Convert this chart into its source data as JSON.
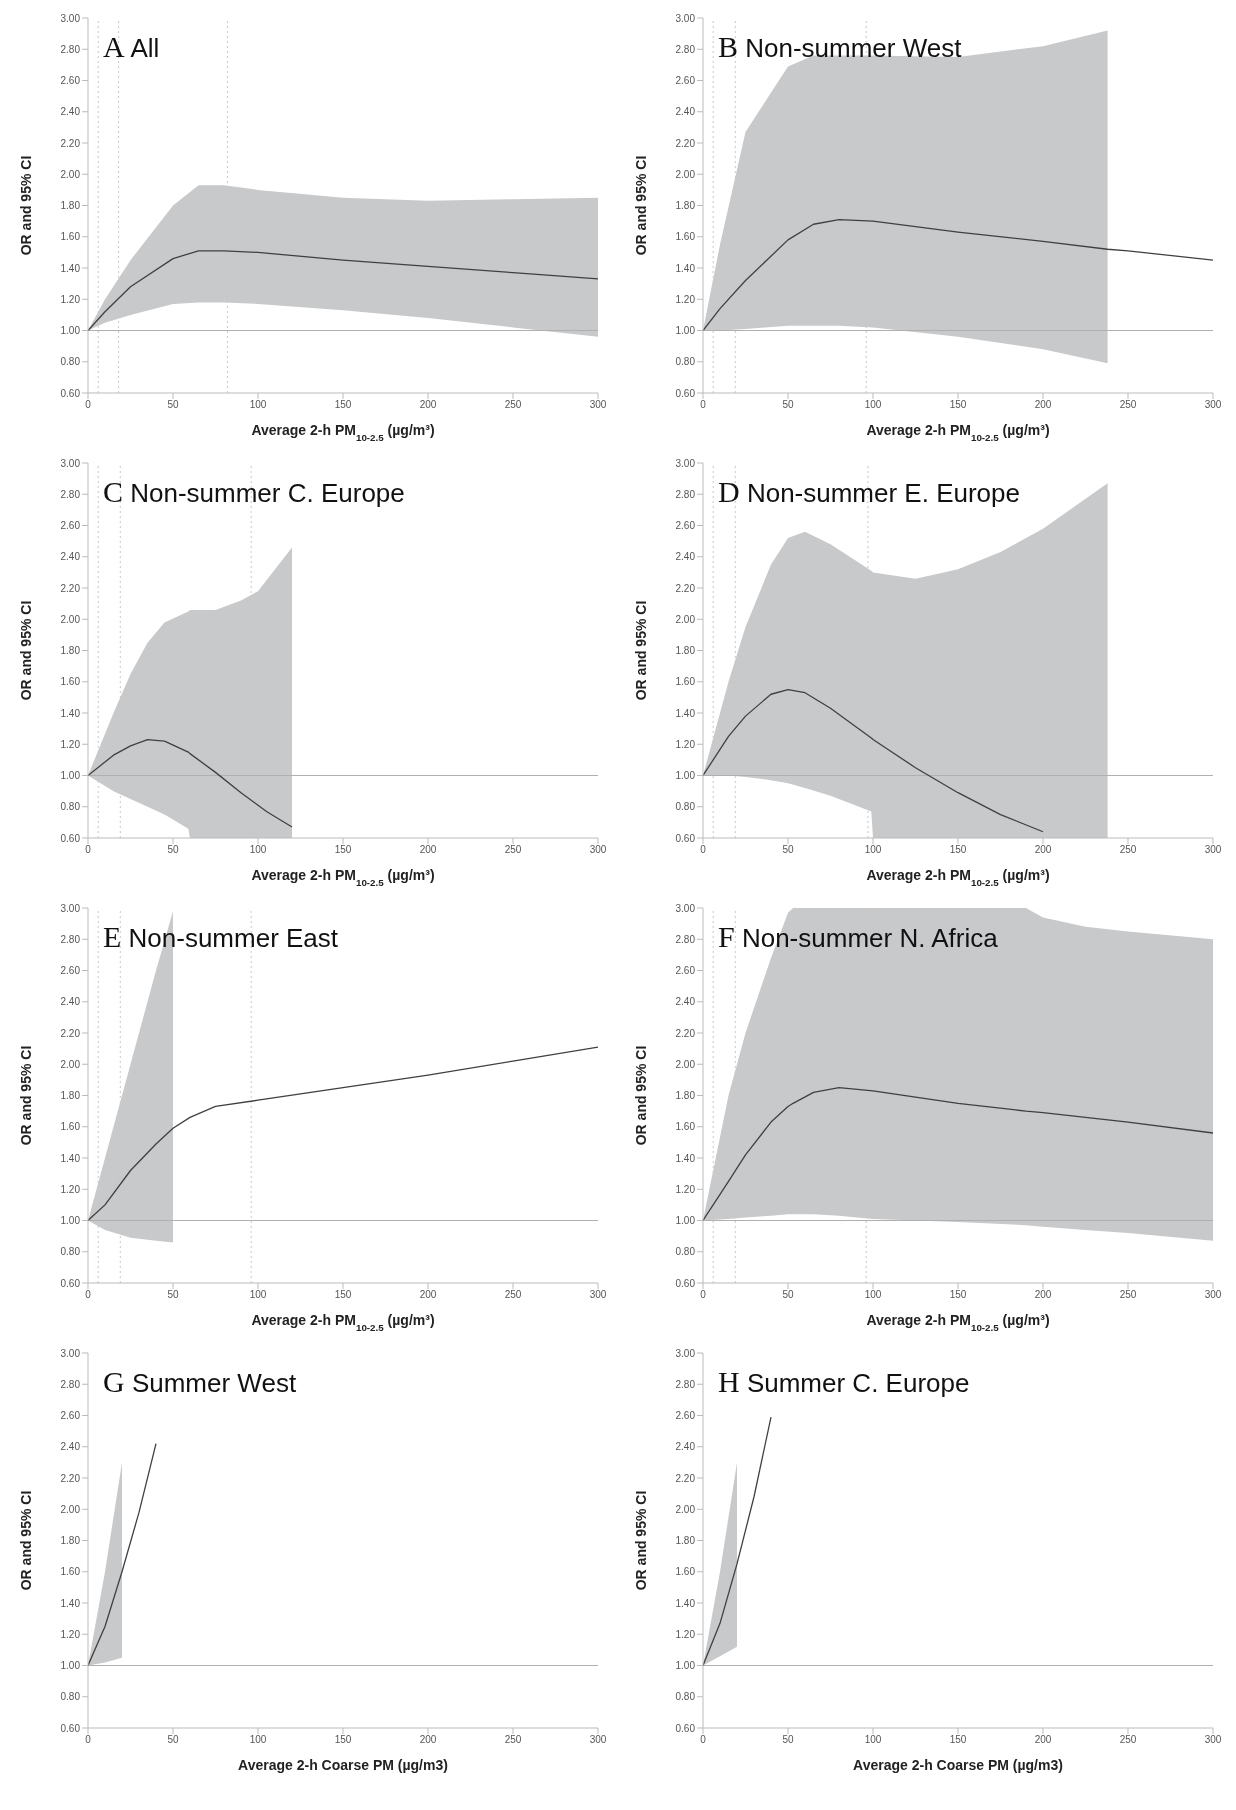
{
  "chart_data": [
    {
      "type": "line",
      "title": "A All",
      "xlabel": "Average 2-h PM$_{10-2.5}$ (µg/m³)",
      "ylabel": "OR and 95% CI",
      "xlim": [
        0,
        300
      ],
      "xticks": [
        0,
        50,
        100,
        150,
        200,
        250,
        300
      ],
      "ylim": [
        0.6,
        3.0
      ],
      "yticks": [
        {
          "value": 0.6,
          "label": "0.60"
        },
        {
          "value": 0.8,
          "label": "0.80"
        },
        {
          "value": 1.0,
          "label": "1.00"
        },
        {
          "value": 1.2,
          "label": "1.20"
        },
        {
          "value": 1.4,
          "label": "1.40"
        },
        {
          "value": 1.6,
          "label": "1.60"
        },
        {
          "value": 1.8,
          "label": "1.80"
        },
        {
          "value": 2.0,
          "label": "2.00"
        },
        {
          "value": 2.2,
          "label": "2.20"
        },
        {
          "value": 2.4,
          "label": "2.40"
        },
        {
          "value": 2.6,
          "label": "2.60"
        },
        {
          "value": 2.8,
          "label": "2.80"
        },
        {
          "value": 3.0,
          "label": "3.00"
        }
      ],
      "series": [
        {
          "color": "#404040",
          "x": [
            0,
            10,
            25,
            50,
            65,
            80,
            100,
            150,
            200,
            250,
            300
          ],
          "values": [
            1.0,
            1.12,
            1.28,
            1.46,
            1.51,
            1.51,
            1.5,
            1.45,
            1.41,
            1.37,
            1.33
          ],
          "lower": [
            1.0,
            1.05,
            1.1,
            1.17,
            1.18,
            1.18,
            1.17,
            1.13,
            1.08,
            1.02,
            0.96
          ],
          "upper": [
            1.0,
            1.2,
            1.45,
            1.8,
            1.93,
            1.93,
            1.9,
            1.85,
            1.83,
            1.84,
            1.85
          ]
        }
      ],
      "ref_lines": [
        {
          "axis": "y",
          "value": 1.0,
          "color": "#b0b0b0",
          "line_style": "solid"
        },
        {
          "axis": "x",
          "value": 6,
          "color": "#c8c8c8",
          "line_style": "dotted"
        },
        {
          "axis": "x",
          "value": 18,
          "color": "#c8c8c8",
          "line_style": "dotted"
        },
        {
          "axis": "x",
          "value": 82,
          "color": "#c8c8c8",
          "line_style": "dotted"
        }
      ]
    },
    {
      "type": "line",
      "title": "B Non-summer West",
      "xlabel": "Average 2-h PM$_{10-2.5}$ (µg/m³)",
      "ylabel": "OR and 95% CI",
      "xlim": [
        0,
        300
      ],
      "xticks": [
        0,
        50,
        100,
        150,
        200,
        250,
        300
      ],
      "ylim": [
        0.6,
        3.0
      ],
      "yticks": [
        {
          "value": 0.6,
          "label": "0.60"
        },
        {
          "value": 0.8,
          "label": "0.80"
        },
        {
          "value": 1.0,
          "label": "1.00"
        },
        {
          "value": 1.2,
          "label": "1.20"
        },
        {
          "value": 1.4,
          "label": "1.40"
        },
        {
          "value": 1.6,
          "label": "1.60"
        },
        {
          "value": 1.8,
          "label": "1.80"
        },
        {
          "value": 2.0,
          "label": "2.00"
        },
        {
          "value": 2.2,
          "label": "2.20"
        },
        {
          "value": 2.4,
          "label": "2.40"
        },
        {
          "value": 2.6,
          "label": "2.60"
        },
        {
          "value": 2.8,
          "label": "2.80"
        },
        {
          "value": 3.0,
          "label": "3.00"
        }
      ],
      "series": [
        {
          "color": "#404040",
          "x": [
            0,
            10,
            25,
            50,
            65,
            80,
            100,
            150,
            200,
            238,
            250,
            300
          ],
          "values": [
            1.0,
            1.14,
            1.32,
            1.58,
            1.68,
            1.71,
            1.7,
            1.63,
            1.57,
            1.52,
            1.51,
            1.45
          ],
          "lower": [
            1.0,
            1.0,
            1.01,
            1.03,
            1.03,
            1.03,
            1.02,
            0.96,
            0.88,
            0.79,
            null,
            null
          ],
          "upper": [
            1.0,
            1.55,
            2.27,
            2.69,
            2.76,
            2.76,
            2.76,
            2.75,
            2.82,
            2.92,
            null,
            null
          ]
        }
      ],
      "ref_lines": [
        {
          "axis": "y",
          "value": 1.0,
          "color": "#b0b0b0",
          "line_style": "solid"
        },
        {
          "axis": "x",
          "value": 6,
          "color": "#c8c8c8",
          "line_style": "dotted"
        },
        {
          "axis": "x",
          "value": 19,
          "color": "#c8c8c8",
          "line_style": "dotted"
        },
        {
          "axis": "x",
          "value": 96,
          "color": "#c8c8c8",
          "line_style": "dotted"
        }
      ]
    },
    {
      "type": "line",
      "title": "C Non-summer C. Europe",
      "xlabel": "Average 2-h PM$_{10-2.5}$ (µg/m³)",
      "ylabel": "OR and 95% CI",
      "xlim": [
        0,
        300
      ],
      "xticks": [
        0,
        50,
        100,
        150,
        200,
        250,
        300
      ],
      "ylim": [
        0.6,
        3.0
      ],
      "yticks": [
        {
          "value": 0.6,
          "label": "0.60"
        },
        {
          "value": 0.8,
          "label": "0.80"
        },
        {
          "value": 1.0,
          "label": "1.00"
        },
        {
          "value": 1.2,
          "label": "1.20"
        },
        {
          "value": 1.4,
          "label": "1.40"
        },
        {
          "value": 1.6,
          "label": "1.60"
        },
        {
          "value": 1.8,
          "label": "1.80"
        },
        {
          "value": 2.0,
          "label": "2.00"
        },
        {
          "value": 2.2,
          "label": "2.20"
        },
        {
          "value": 2.4,
          "label": "2.40"
        },
        {
          "value": 2.6,
          "label": "2.60"
        },
        {
          "value": 2.8,
          "label": "2.80"
        },
        {
          "value": 3.0,
          "label": "3.00"
        }
      ],
      "series": [
        {
          "color": "#404040",
          "x": [
            0,
            15,
            25,
            35,
            45,
            59,
            60,
            75,
            90,
            100,
            105,
            120
          ],
          "values": [
            1.0,
            1.13,
            1.19,
            1.23,
            1.22,
            1.15,
            1.14,
            1.02,
            0.89,
            0.81,
            0.77,
            0.67
          ],
          "lower": [
            1.0,
            0.9,
            0.85,
            0.8,
            0.75,
            0.66,
            0.6,
            0.6,
            0.6,
            0.6,
            0.6,
            0.6
          ],
          "upper": [
            1.0,
            1.4,
            1.65,
            1.85,
            1.98,
            2.05,
            2.06,
            2.06,
            2.12,
            2.18,
            2.25,
            2.46
          ]
        }
      ],
      "ref_lines": [
        {
          "axis": "y",
          "value": 1.0,
          "color": "#b0b0b0",
          "line_style": "solid"
        },
        {
          "axis": "x",
          "value": 6,
          "color": "#c8c8c8",
          "line_style": "dotted"
        },
        {
          "axis": "x",
          "value": 19,
          "color": "#c8c8c8",
          "line_style": "dotted"
        },
        {
          "axis": "x",
          "value": 96,
          "color": "#c8c8c8",
          "line_style": "dotted"
        }
      ]
    },
    {
      "type": "line",
      "title": "D Non-summer E. Europe",
      "xlabel": "Average 2-h PM$_{10-2.5}$ (µg/m³)",
      "ylabel": "OR and 95% CI",
      "xlim": [
        0,
        300
      ],
      "xticks": [
        0,
        50,
        100,
        150,
        200,
        250,
        300
      ],
      "ylim": [
        0.6,
        3.0
      ],
      "yticks": [
        {
          "value": 0.6,
          "label": "0.60"
        },
        {
          "value": 0.8,
          "label": "0.80"
        },
        {
          "value": 1.0,
          "label": "1.00"
        },
        {
          "value": 1.2,
          "label": "1.20"
        },
        {
          "value": 1.4,
          "label": "1.40"
        },
        {
          "value": 1.6,
          "label": "1.60"
        },
        {
          "value": 1.8,
          "label": "1.80"
        },
        {
          "value": 2.0,
          "label": "2.00"
        },
        {
          "value": 2.2,
          "label": "2.20"
        },
        {
          "value": 2.4,
          "label": "2.40"
        },
        {
          "value": 2.6,
          "label": "2.60"
        },
        {
          "value": 2.8,
          "label": "2.80"
        },
        {
          "value": 3.0,
          "label": "3.00"
        }
      ],
      "series": [
        {
          "color": "#404040",
          "x": [
            0,
            15,
            25,
            40,
            50,
            60,
            75,
            99,
            100,
            125,
            150,
            175,
            200,
            238
          ],
          "values": [
            1.0,
            1.25,
            1.38,
            1.52,
            1.55,
            1.53,
            1.43,
            1.24,
            1.23,
            1.05,
            0.89,
            0.75,
            0.64,
            null
          ],
          "lower": [
            1.0,
            1.0,
            0.99,
            0.97,
            0.95,
            0.92,
            0.87,
            0.77,
            0.6,
            0.6,
            0.6,
            0.6,
            0.6,
            0.6
          ],
          "upper": [
            1.0,
            1.6,
            1.95,
            2.35,
            2.52,
            2.56,
            2.48,
            2.31,
            2.3,
            2.26,
            2.32,
            2.43,
            2.58,
            2.87
          ]
        }
      ],
      "ref_lines": [
        {
          "axis": "y",
          "value": 1.0,
          "color": "#b0b0b0",
          "line_style": "solid"
        },
        {
          "axis": "x",
          "value": 6,
          "color": "#c8c8c8",
          "line_style": "dotted"
        },
        {
          "axis": "x",
          "value": 19,
          "color": "#c8c8c8",
          "line_style": "dotted"
        },
        {
          "axis": "x",
          "value": 97,
          "color": "#c8c8c8",
          "line_style": "dotted"
        }
      ]
    },
    {
      "type": "line",
      "title": "E Non-summer East",
      "xlabel": "Average 2-h PM$_{10-2.5}$ (µg/m³)",
      "ylabel": "OR and 95% CI",
      "xlim": [
        0,
        300
      ],
      "xticks": [
        0,
        50,
        100,
        150,
        200,
        250,
        300
      ],
      "ylim": [
        0.6,
        3.0
      ],
      "yticks": [
        {
          "value": 0.6,
          "label": "0.60"
        },
        {
          "value": 0.8,
          "label": "0.80"
        },
        {
          "value": 1.0,
          "label": "1.00"
        },
        {
          "value": 1.2,
          "label": "1.20"
        },
        {
          "value": 1.4,
          "label": "1.40"
        },
        {
          "value": 1.6,
          "label": "1.60"
        },
        {
          "value": 1.8,
          "label": "1.80"
        },
        {
          "value": 2.0,
          "label": "2.00"
        },
        {
          "value": 2.2,
          "label": "2.20"
        },
        {
          "value": 2.4,
          "label": "2.40"
        },
        {
          "value": 2.6,
          "label": "2.60"
        },
        {
          "value": 2.8,
          "label": "2.80"
        },
        {
          "value": 3.0,
          "label": "3.00"
        }
      ],
      "series": [
        {
          "color": "#404040",
          "x": [
            0,
            10,
            25,
            40,
            50,
            60,
            75,
            100,
            150,
            200,
            250,
            300
          ],
          "values": [
            1.0,
            1.1,
            1.32,
            1.49,
            1.59,
            1.66,
            1.73,
            1.77,
            1.85,
            1.93,
            2.02,
            2.11
          ],
          "lower": [
            1.0,
            0.94,
            0.89,
            0.87,
            0.86,
            null,
            null,
            null,
            null,
            null,
            null,
            null
          ],
          "upper": [
            1.0,
            1.4,
            2.0,
            2.6,
            2.98,
            null,
            null,
            null,
            null,
            null,
            null,
            null
          ]
        }
      ],
      "ref_lines": [
        {
          "axis": "y",
          "value": 1.0,
          "color": "#b0b0b0",
          "line_style": "solid"
        },
        {
          "axis": "x",
          "value": 6,
          "color": "#c8c8c8",
          "line_style": "dotted"
        },
        {
          "axis": "x",
          "value": 19,
          "color": "#c8c8c8",
          "line_style": "dotted"
        },
        {
          "axis": "x",
          "value": 96,
          "color": "#c8c8c8",
          "line_style": "dotted"
        }
      ]
    },
    {
      "type": "line",
      "title": "F Non-summer N. Africa",
      "xlabel": "Average 2-h PM$_{10-2.5}$ (µg/m³)",
      "ylabel": "OR and 95% CI",
      "xlim": [
        0,
        300
      ],
      "xticks": [
        0,
        50,
        100,
        150,
        200,
        250,
        300
      ],
      "ylim": [
        0.6,
        3.0
      ],
      "yticks": [
        {
          "value": 0.6,
          "label": "0.60"
        },
        {
          "value": 0.8,
          "label": "0.80"
        },
        {
          "value": 1.0,
          "label": "1.00"
        },
        {
          "value": 1.2,
          "label": "1.20"
        },
        {
          "value": 1.4,
          "label": "1.40"
        },
        {
          "value": 1.6,
          "label": "1.60"
        },
        {
          "value": 1.8,
          "label": "1.80"
        },
        {
          "value": 2.0,
          "label": "2.00"
        },
        {
          "value": 2.2,
          "label": "2.20"
        },
        {
          "value": 2.4,
          "label": "2.40"
        },
        {
          "value": 2.6,
          "label": "2.60"
        },
        {
          "value": 2.8,
          "label": "2.80"
        },
        {
          "value": 3.0,
          "label": "3.00"
        }
      ],
      "series": [
        {
          "color": "#404040",
          "x": [
            0,
            15,
            25,
            40,
            50,
            53,
            65,
            80,
            100,
            150,
            190,
            200,
            225,
            250,
            300
          ],
          "values": [
            1.0,
            1.25,
            1.42,
            1.63,
            1.73,
            1.75,
            1.82,
            1.85,
            1.83,
            1.75,
            1.7,
            1.69,
            1.66,
            1.63,
            1.56
          ],
          "lower": [
            1.0,
            1.01,
            1.02,
            1.03,
            1.04,
            1.04,
            1.04,
            1.03,
            1.01,
            0.99,
            0.97,
            0.96,
            0.94,
            0.92,
            0.87
          ],
          "upper": [
            1.0,
            1.8,
            2.2,
            2.68,
            2.97,
            3.0,
            3.0,
            3.0,
            3.0,
            3.0,
            3.0,
            2.94,
            2.88,
            2.85,
            2.8
          ]
        }
      ],
      "ref_lines": [
        {
          "axis": "y",
          "value": 1.0,
          "color": "#b0b0b0",
          "line_style": "solid"
        },
        {
          "axis": "x",
          "value": 6,
          "color": "#c8c8c8",
          "line_style": "dotted"
        },
        {
          "axis": "x",
          "value": 19,
          "color": "#c8c8c8",
          "line_style": "dotted"
        },
        {
          "axis": "x",
          "value": 96,
          "color": "#c8c8c8",
          "line_style": "dotted"
        }
      ]
    },
    {
      "type": "line",
      "title": "G Summer West",
      "xlabel": "Average 2-h Coarse PM (µg/m3)",
      "ylabel": "OR and 95% CI",
      "xlim": [
        0,
        300
      ],
      "xticks": [
        0,
        50,
        100,
        150,
        200,
        250,
        300
      ],
      "ylim": [
        0.6,
        3.0
      ],
      "yticks": [
        {
          "value": 0.6,
          "label": "0.60"
        },
        {
          "value": 0.8,
          "label": "0.80"
        },
        {
          "value": 1.0,
          "label": "1.00"
        },
        {
          "value": 1.2,
          "label": "1.20"
        },
        {
          "value": 1.4,
          "label": "1.40"
        },
        {
          "value": 1.6,
          "label": "1.60"
        },
        {
          "value": 1.8,
          "label": "1.80"
        },
        {
          "value": 2.0,
          "label": "2.00"
        },
        {
          "value": 2.2,
          "label": "2.20"
        },
        {
          "value": 2.4,
          "label": "2.40"
        },
        {
          "value": 2.6,
          "label": "2.60"
        },
        {
          "value": 2.8,
          "label": "2.80"
        },
        {
          "value": 3.0,
          "label": "3.00"
        }
      ],
      "series": [
        {
          "color": "#404040",
          "x": [
            0,
            10,
            20,
            30,
            40
          ],
          "values": [
            1.0,
            1.25,
            1.6,
            1.98,
            2.42
          ],
          "lower": [
            1.0,
            1.02,
            1.05,
            null,
            null
          ],
          "upper": [
            1.0,
            1.6,
            2.3,
            null,
            null
          ]
        }
      ],
      "ref_lines": [
        {
          "axis": "y",
          "value": 1.0,
          "color": "#b0b0b0",
          "line_style": "solid"
        }
      ]
    },
    {
      "type": "line",
      "title": "H Summer C. Europe",
      "xlabel": "Average 2-h Coarse PM (µg/m3)",
      "ylabel": "OR and 95% CI",
      "xlim": [
        0,
        300
      ],
      "xticks": [
        0,
        50,
        100,
        150,
        200,
        250,
        300
      ],
      "ylim": [
        0.6,
        3.0
      ],
      "yticks": [
        {
          "value": 0.6,
          "label": "0.60"
        },
        {
          "value": 0.8,
          "label": "0.80"
        },
        {
          "value": 1.0,
          "label": "1.00"
        },
        {
          "value": 1.2,
          "label": "1.20"
        },
        {
          "value": 1.4,
          "label": "1.40"
        },
        {
          "value": 1.6,
          "label": "1.60"
        },
        {
          "value": 1.8,
          "label": "1.80"
        },
        {
          "value": 2.0,
          "label": "2.00"
        },
        {
          "value": 2.2,
          "label": "2.20"
        },
        {
          "value": 2.4,
          "label": "2.40"
        },
        {
          "value": 2.6,
          "label": "2.60"
        },
        {
          "value": 2.8,
          "label": "2.80"
        },
        {
          "value": 3.0,
          "label": "3.00"
        }
      ],
      "series": [
        {
          "color": "#404040",
          "x": [
            0,
            10,
            20,
            30,
            40
          ],
          "values": [
            1.0,
            1.27,
            1.65,
            2.08,
            2.59
          ],
          "lower": [
            1.0,
            1.06,
            1.12,
            null,
            null
          ],
          "upper": [
            1.0,
            1.6,
            2.3,
            null,
            null
          ]
        }
      ],
      "ref_lines": [
        {
          "axis": "y",
          "value": 1.0,
          "color": "#b0b0b0",
          "line_style": "solid"
        }
      ]
    }
  ]
}
